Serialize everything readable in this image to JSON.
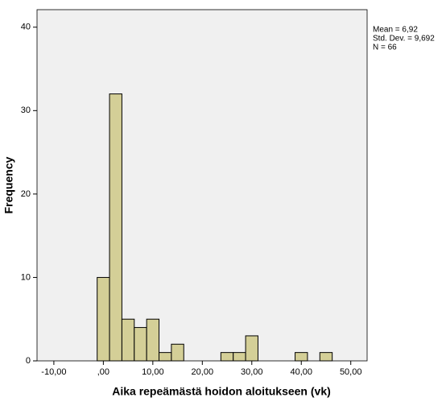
{
  "chart_data": {
    "type": "histogram",
    "x_label": "Aika repeämästä hoidon aloitukseen (vk)",
    "y_label": "Frequency",
    "bins": [
      -1.25,
      1.25,
      3.75,
      6.25,
      8.75,
      11.25,
      13.75,
      16.25,
      18.75,
      21.25,
      23.75,
      26.25,
      28.75,
      31.25,
      33.75,
      36.25,
      38.75,
      41.25,
      43.75,
      46.25
    ],
    "values": [
      10,
      32,
      5,
      4,
      5,
      1,
      2,
      0,
      0,
      0,
      1,
      1,
      3,
      0,
      0,
      0,
      1,
      0,
      1
    ],
    "color": "#d4cf97",
    "xlim": [
      -13.4,
      53.3
    ],
    "ylim": [
      0,
      42.1
    ],
    "xticks": [
      {
        "value": -10,
        "label": "-10,00"
      },
      {
        "value": 0,
        "label": ",00"
      },
      {
        "value": 10,
        "label": "10,00"
      },
      {
        "value": 20,
        "label": "20,00"
      },
      {
        "value": 30,
        "label": "30,00"
      },
      {
        "value": 40,
        "label": "40,00"
      },
      {
        "value": 50,
        "label": "50,00"
      }
    ],
    "yticks": [
      0,
      10,
      20,
      30,
      40
    ],
    "stats": [
      "Mean = 6,92",
      "Std. Dev. = 9,692",
      "N = 66"
    ]
  }
}
